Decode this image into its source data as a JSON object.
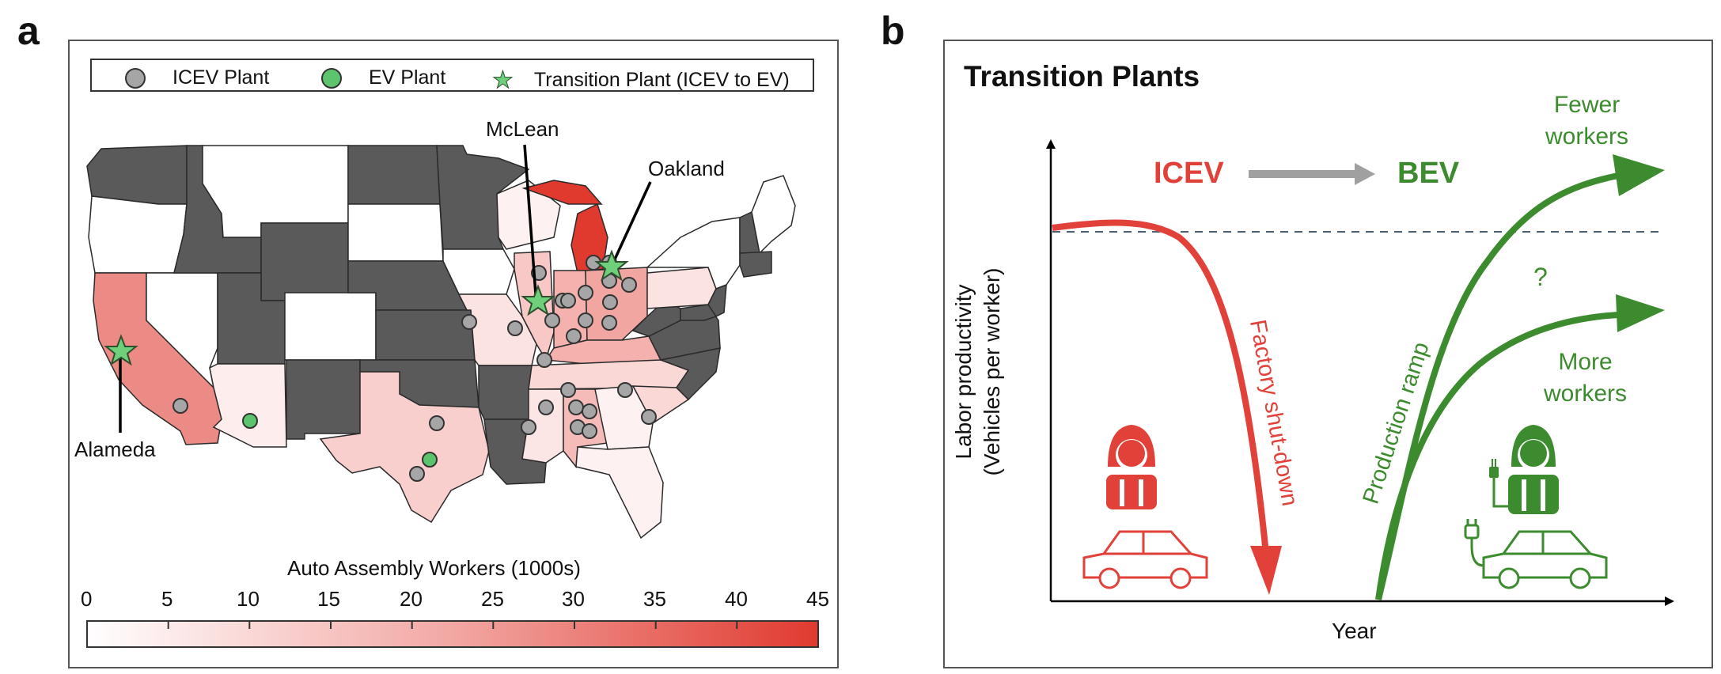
{
  "panel_a": {
    "letter": "a",
    "legend": {
      "icev": "ICEV Plant",
      "ev": "EV Plant",
      "transition": "Transition Plant (ICEV to EV)"
    },
    "labels": {
      "mclean": "McLean",
      "oakland": "Oakland",
      "alameda": "Alameda"
    },
    "colorbar": {
      "title": "Auto Assembly Workers (1000s)",
      "ticks": [
        "0",
        "5",
        "10",
        "15",
        "20",
        "25",
        "30",
        "35",
        "40",
        "45"
      ],
      "min_color": "#ffffff",
      "max_color": "#e03a2f"
    },
    "colors": {
      "no_data_state": "#5a5a5a",
      "icev_plant": "#a6a6a6",
      "ev_plant": "#5cc46d",
      "transition_plant": "#6fd07c"
    }
  },
  "panel_b": {
    "letter": "b",
    "title": "Transition Plants",
    "icev": "ICEV",
    "bev": "BEV",
    "ylabel_line1": "Labor productivity",
    "ylabel_line2": "(Vehicles per worker)",
    "xlabel": "Year",
    "shutdown": "Factory shut-down",
    "ramp": "Production ramp",
    "fewer_1": "Fewer",
    "fewer_2": "workers",
    "question": "?",
    "more_1": "More",
    "more_2": "workers",
    "colors": {
      "icev": "#e2413a",
      "bev": "#3d8b2f",
      "arrow": "#a0a0a0"
    }
  }
}
